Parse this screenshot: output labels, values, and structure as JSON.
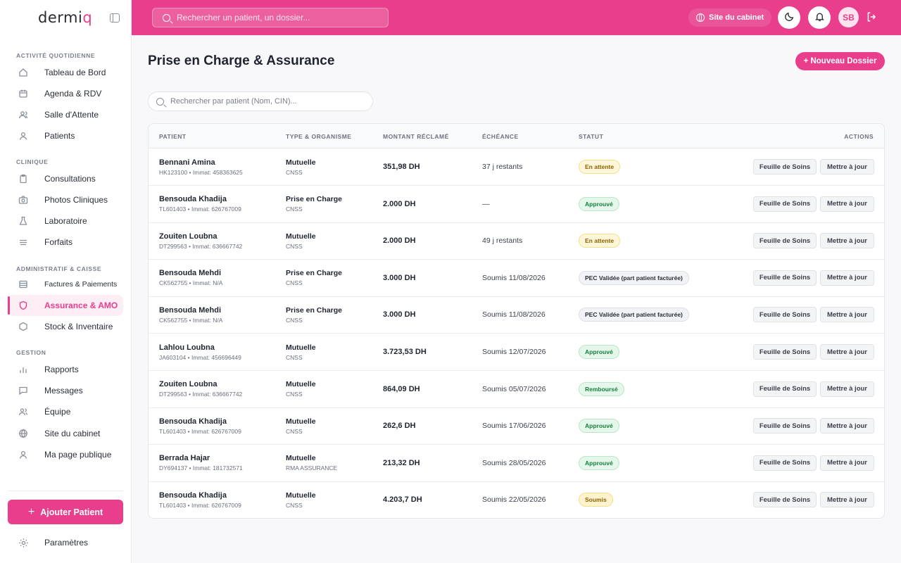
{
  "app": {
    "logo_text": "dermi",
    "logo_accent": "q",
    "accent_color": "#e83e8c"
  },
  "sidebar": {
    "sections": [
      {
        "title": "ACTIVITÉ QUOTIDIENNE"
      },
      {
        "title": "CLINIQUE"
      },
      {
        "title": "ADMINISTRATIF & CAISSE"
      },
      {
        "title": "GESTION"
      }
    ],
    "items": [
      {
        "label": "Tableau de Bord",
        "icon": "home-icon"
      },
      {
        "label": "Agenda & RDV",
        "icon": "calendar-icon"
      },
      {
        "label": "Salle d'Attente",
        "icon": "users-icon"
      },
      {
        "label": "Patients",
        "icon": "user-icon"
      },
      {
        "label": "Consultations",
        "icon": "clipboard-icon"
      },
      {
        "label": "Photos Cliniques",
        "icon": "camera-icon"
      },
      {
        "label": "Laboratoire",
        "icon": "flask-icon"
      },
      {
        "label": "Forfaits",
        "icon": "layers-icon"
      },
      {
        "label": "Factures & Paiements",
        "icon": "invoice-icon"
      },
      {
        "label": "Assurance & AMO",
        "icon": "shield-icon",
        "active": true
      },
      {
        "label": "Stock & Inventaire",
        "icon": "box-icon"
      },
      {
        "label": "Rapports",
        "icon": "bar-chart-icon"
      },
      {
        "label": "Messages",
        "icon": "message-icon"
      },
      {
        "label": "Équipe",
        "icon": "team-icon"
      },
      {
        "label": "Site du cabinet",
        "icon": "globe-icon"
      },
      {
        "label": "Ma page publique",
        "icon": "profile-icon"
      }
    ],
    "add_patient_label": "Ajouter Patient",
    "settings_label": "Paramètres"
  },
  "header": {
    "search_placeholder": "Rechercher un patient, un dossier...",
    "site_label": "Site du cabinet",
    "avatar_initials": "SB"
  },
  "main": {
    "title": "Prise en Charge & Assurance",
    "new_folder_label": "+ Nouveau Dossier",
    "search_placeholder": "Rechercher par patient (Nom, CIN)...",
    "columns": {
      "patient": "PATIENT",
      "type": "TYPE & ORGANISME",
      "amount": "MONTANT RÉCLAMÉ",
      "due": "ÉCHÉANCE",
      "status": "STATUT",
      "actions": "ACTIONS"
    },
    "action_labels": {
      "sheet": "Feuille de Soins",
      "update": "Mettre à jour"
    },
    "rows": [
      {
        "name": "Bennani Amina",
        "sub": "HK123100 • Immat: 458363625",
        "type": "Mutuelle",
        "org": "CNSS",
        "amount": "351,98 DH",
        "due": "37 j restants",
        "status": "En attente",
        "kind": "pending"
      },
      {
        "name": "Bensouda Khadija",
        "sub": "TL601403 • Immat: 626767009",
        "type": "Prise en Charge",
        "org": "CNSS",
        "amount": "2.000 DH",
        "due": "—",
        "status": "Approuvé",
        "kind": "ok"
      },
      {
        "name": "Zouiten Loubna",
        "sub": "DT299563 • Immat: 636667742",
        "type": "Mutuelle",
        "org": "CNSS",
        "amount": "2.000 DH",
        "due": "49 j restants",
        "status": "En attente",
        "kind": "pending"
      },
      {
        "name": "Bensouda Mehdi",
        "sub": "CK562755 • Immat: N/A",
        "type": "Prise en Charge",
        "org": "CNSS",
        "amount": "3.000 DH",
        "due": "Soumis 11/08/2026",
        "status": "PEC Validée (part patient facturée)",
        "kind": "validated"
      },
      {
        "name": "Bensouda Mehdi",
        "sub": "CK562755 • Immat: N/A",
        "type": "Prise en Charge",
        "org": "CNSS",
        "amount": "3.000 DH",
        "due": "Soumis 11/08/2026",
        "status": "PEC Validée (part patient facturée)",
        "kind": "validated"
      },
      {
        "name": "Lahlou Loubna",
        "sub": "JA603104 • Immat: 456696449",
        "type": "Mutuelle",
        "org": "CNSS",
        "amount": "3.723,53 DH",
        "due": "Soumis 12/07/2026",
        "status": "Approuvé",
        "kind": "ok"
      },
      {
        "name": "Zouiten Loubna",
        "sub": "DT299563 • Immat: 636667742",
        "type": "Mutuelle",
        "org": "CNSS",
        "amount": "864,09 DH",
        "due": "Soumis 05/07/2026",
        "status": "Remboursé",
        "kind": "ok"
      },
      {
        "name": "Bensouda Khadija",
        "sub": "TL601403 • Immat: 626767009",
        "type": "Mutuelle",
        "org": "CNSS",
        "amount": "262,6 DH",
        "due": "Soumis 17/06/2026",
        "status": "Approuvé",
        "kind": "ok"
      },
      {
        "name": "Berrada Hajar",
        "sub": "DY694137 • Immat: 181732571",
        "type": "Mutuelle",
        "org": "RMA ASSURANCE",
        "amount": "213,32 DH",
        "due": "Soumis 28/05/2026",
        "status": "Approuvé",
        "kind": "ok"
      },
      {
        "name": "Bensouda Khadija",
        "sub": "TL601403 • Immat: 626767009",
        "type": "Mutuelle",
        "org": "CNSS",
        "amount": "4.203,7 DH",
        "due": "Soumis 22/05/2026",
        "status": "Soumis",
        "kind": "submitted"
      }
    ]
  }
}
